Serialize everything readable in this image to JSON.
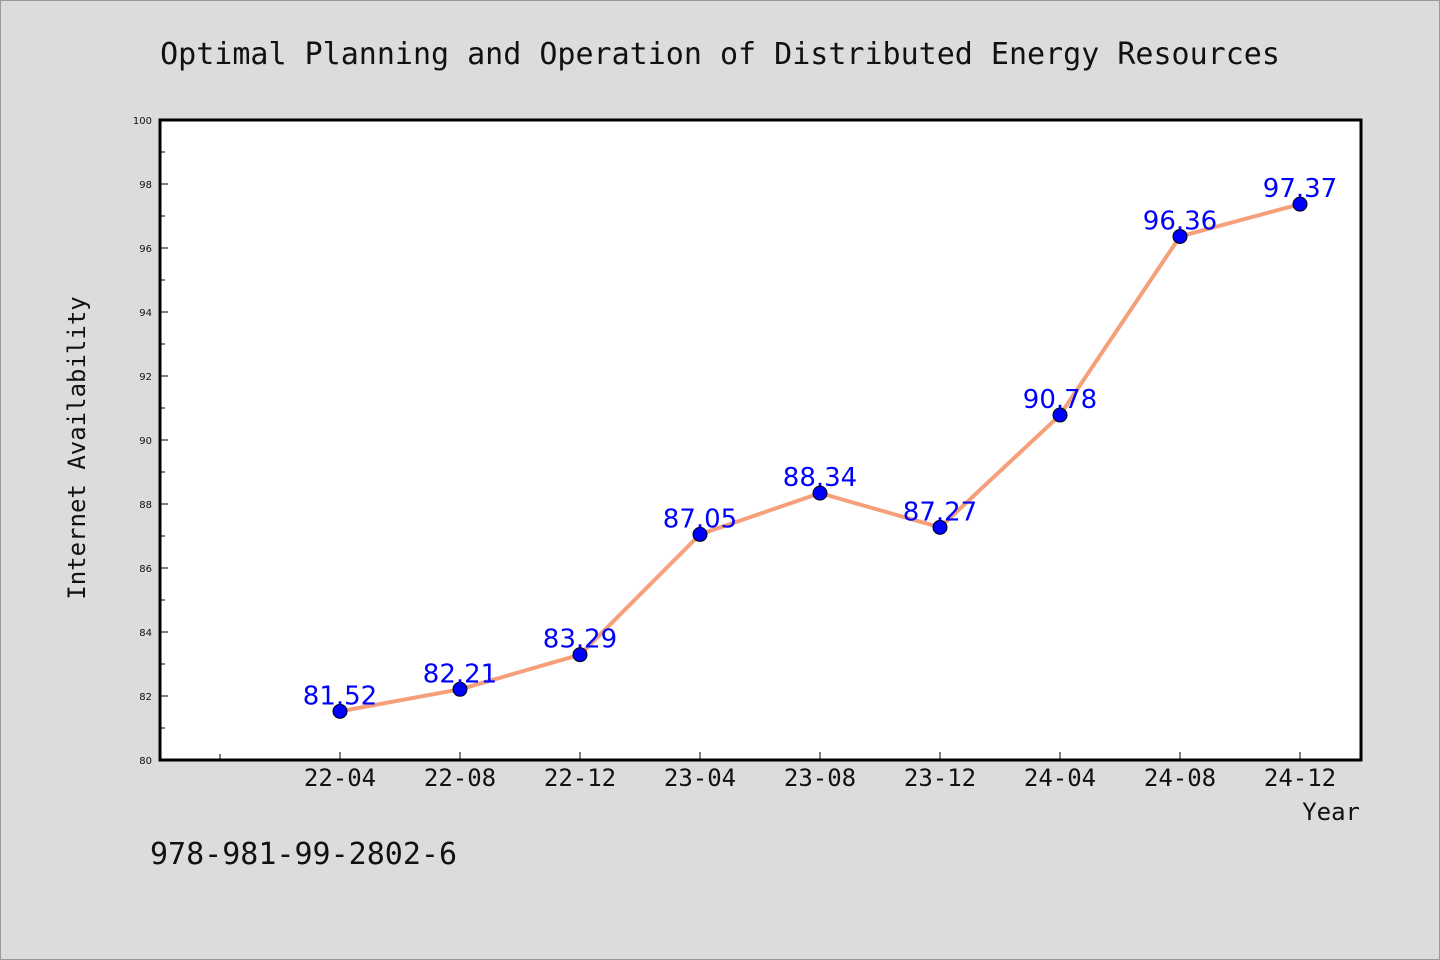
{
  "chart_data": {
    "type": "line",
    "title": "Optimal Planning and Operation of Distributed Energy Resources",
    "xlabel": "Year",
    "ylabel": "Internet Availability",
    "categories": [
      "22-04",
      "22-08",
      "22-12",
      "23-04",
      "23-08",
      "23-12",
      "24-04",
      "24-08",
      "24-12"
    ],
    "series": [
      {
        "values": [
          81.52,
          82.21,
          83.29,
          87.05,
          88.34,
          87.27,
          90.78,
          96.36,
          97.37
        ]
      }
    ],
    "data_labels": [
      "81.52",
      "82.21",
      "83.29",
      "87.05",
      "88.34",
      "87.27",
      "90.78",
      "96.36",
      "97.37"
    ],
    "ylim": [
      80,
      100
    ],
    "yticks": [
      80,
      82,
      84,
      86,
      88,
      90,
      92,
      94,
      96,
      98,
      100
    ],
    "grid": false,
    "colors": {
      "line": "#f5a07a",
      "marker": "#0000ff",
      "label": "#0000ff",
      "background": "#dcdcdc",
      "plot": "#ffffff"
    }
  },
  "footer": {
    "isbn": "978-981-99-2802-6"
  }
}
